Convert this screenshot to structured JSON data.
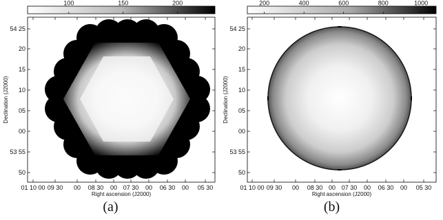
{
  "panels": [
    {
      "id": "a",
      "caption": "(a)",
      "colorbar": {
        "ticks": [
          "100",
          "150",
          "200"
        ]
      },
      "y_axis_label": "Declination (J2000)",
      "x_axis_label": "Right ascension (J2000)",
      "y_ticks": [
        "54 25",
        "20",
        "15",
        "10",
        "05",
        "00",
        "53 55",
        "50"
      ],
      "x_ticks": [
        "01 10 00",
        "09 30",
        "00",
        "08 30",
        "00",
        "07 30",
        "00",
        "06 30",
        "00",
        "05 30"
      ],
      "shape": "hexagon mosaic"
    },
    {
      "id": "b",
      "caption": "(b)",
      "colorbar": {
        "ticks": [
          "200",
          "400",
          "600",
          "800",
          "1000"
        ]
      },
      "y_axis_label": "Declination (J2000)",
      "x_axis_label": "Right ascension (J2000)",
      "y_ticks": [
        "54 25",
        "20",
        "15",
        "10",
        "05",
        "00",
        "53 55",
        "50"
      ],
      "x_ticks": [
        "01 10 00",
        "09 30",
        "00",
        "08 30",
        "00",
        "07 30",
        "00",
        "06 30",
        "00",
        "05 30"
      ],
      "shape": "single circular beam"
    }
  ]
}
